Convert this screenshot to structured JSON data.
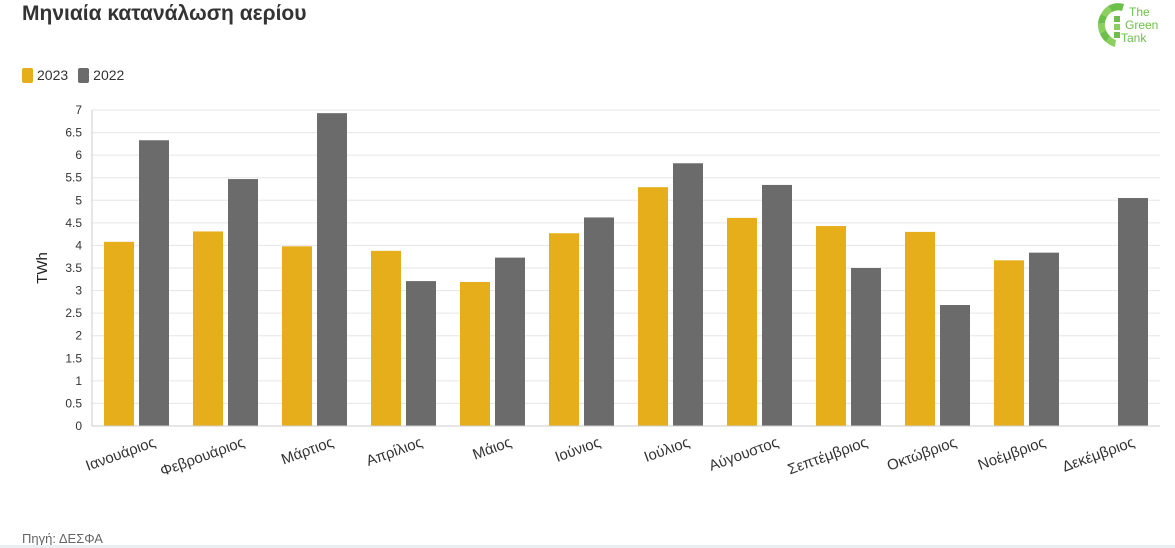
{
  "header": {
    "title": "Μηνιαία κατανάλωση αερίου"
  },
  "logo": {
    "lines": [
      "The",
      "Green",
      "Tank"
    ],
    "color": "#6cc04a"
  },
  "footer": {
    "source": "Πηγή: ΔΕΣΦΑ"
  },
  "chart_data": {
    "type": "bar",
    "title": "Μηνιαία κατανάλωση αερίου",
    "xlabel": "",
    "ylabel": "TWh",
    "ylim": [
      0,
      7
    ],
    "yticks": [
      "0",
      "0.5",
      "1",
      "1.5",
      "2",
      "2.5",
      "3",
      "3.5",
      "4",
      "4.5",
      "5",
      "5.5",
      "6",
      "6.5",
      "7"
    ],
    "grid": true,
    "legend_position": "top-left",
    "categories": [
      "Ιανουάριος",
      "Φεβρουάριος",
      "Μάρτιος",
      "Απρίλιος",
      "Μάιος",
      "Ιούνιος",
      "Ιούλιος",
      "Αύγουστος",
      "Σεπτέμβριος",
      "Οκτώβριος",
      "Νοέμβριος",
      "Δεκέμβριος"
    ],
    "series": [
      {
        "name": "2023",
        "color": "#e6ae1a",
        "values": [
          4.08,
          4.31,
          3.98,
          3.88,
          3.19,
          4.27,
          5.29,
          4.61,
          4.43,
          4.3,
          3.67,
          null
        ]
      },
      {
        "name": "2022",
        "color": "#6b6b6b",
        "values": [
          6.33,
          5.47,
          6.93,
          3.21,
          3.73,
          4.62,
          5.82,
          5.34,
          3.5,
          2.68,
          3.84,
          5.05
        ]
      }
    ]
  }
}
